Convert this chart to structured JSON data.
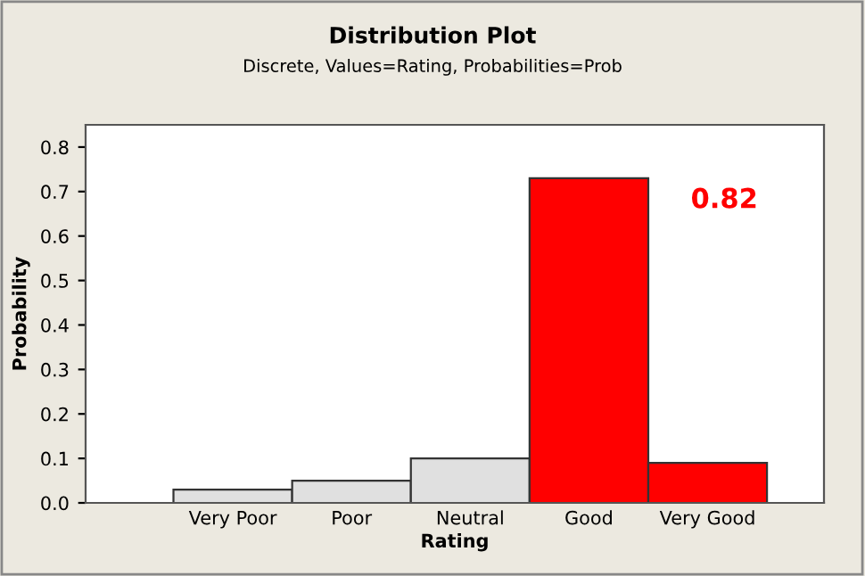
{
  "chart_data": {
    "type": "bar",
    "title": "Distribution Plot",
    "subtitle": "Discrete, Values=Rating, Probabilities=Prob",
    "xlabel": "Rating",
    "ylabel": "Probability",
    "categories": [
      "Very Poor",
      "Poor",
      "Neutral",
      "Good",
      "Very Good"
    ],
    "values": [
      0.03,
      0.05,
      0.1,
      0.73,
      0.09
    ],
    "colors": [
      "#e0e0e0",
      "#e0e0e0",
      "#e0e0e0",
      "#ff0000",
      "#ff0000"
    ],
    "annotations": [
      "0.82"
    ],
    "ylim": [
      0,
      0.85
    ],
    "yticks": [
      {
        "value": 0,
        "label": "0.0"
      },
      {
        "value": 0.1,
        "label": "0.1"
      },
      {
        "value": 0.2,
        "label": "0.2"
      },
      {
        "value": 0.3,
        "label": "0.3"
      },
      {
        "value": 0.4,
        "label": "0.4"
      },
      {
        "value": 0.5,
        "label": "0.5"
      },
      {
        "value": 0.6,
        "label": "0.6"
      },
      {
        "value": 0.7,
        "label": "0.7"
      },
      {
        "value": 0.8,
        "label": "0.8"
      }
    ],
    "grid": false,
    "legend": false
  }
}
